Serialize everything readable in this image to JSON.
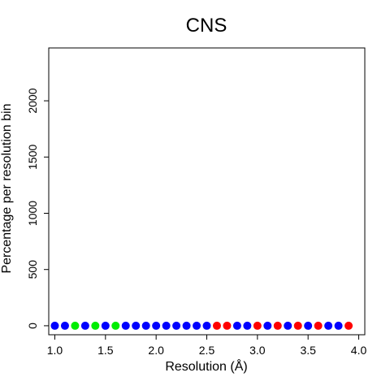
{
  "chart_data": {
    "type": "scatter",
    "title": "CNS",
    "xlabel": "Resolution (Å)",
    "ylabel": "Percentage per resolution bin",
    "xlim": [
      0.94,
      4.06
    ],
    "ylim": [
      -80,
      2470
    ],
    "xticks": [
      "1.0",
      "1.5",
      "2.0",
      "2.5",
      "3.0",
      "3.5",
      "4.0"
    ],
    "yticks": [
      "0",
      "500",
      "1000",
      "1500",
      "2000"
    ],
    "grid": false,
    "colors": {
      "blue": "#0000ff",
      "green": "#00ee00",
      "red": "#ff0000"
    },
    "points": [
      {
        "x": 1.0,
        "y": 0,
        "color": "blue"
      },
      {
        "x": 1.1,
        "y": 0,
        "color": "blue"
      },
      {
        "x": 1.2,
        "y": 0,
        "color": "green"
      },
      {
        "x": 1.3,
        "y": 0,
        "color": "blue"
      },
      {
        "x": 1.4,
        "y": 0,
        "color": "green"
      },
      {
        "x": 1.5,
        "y": 0,
        "color": "blue"
      },
      {
        "x": 1.6,
        "y": 0,
        "color": "green"
      },
      {
        "x": 1.7,
        "y": 0,
        "color": "blue"
      },
      {
        "x": 1.8,
        "y": 0,
        "color": "blue"
      },
      {
        "x": 1.9,
        "y": 0,
        "color": "blue"
      },
      {
        "x": 2.0,
        "y": 0,
        "color": "blue"
      },
      {
        "x": 2.1,
        "y": 0,
        "color": "blue"
      },
      {
        "x": 2.2,
        "y": 0,
        "color": "blue"
      },
      {
        "x": 2.3,
        "y": 0,
        "color": "blue"
      },
      {
        "x": 2.4,
        "y": 0,
        "color": "blue"
      },
      {
        "x": 2.5,
        "y": 0,
        "color": "blue"
      },
      {
        "x": 2.6,
        "y": 0,
        "color": "red"
      },
      {
        "x": 2.7,
        "y": 0,
        "color": "red"
      },
      {
        "x": 2.8,
        "y": 0,
        "color": "blue"
      },
      {
        "x": 2.9,
        "y": 0,
        "color": "blue"
      },
      {
        "x": 3.0,
        "y": 0,
        "color": "red"
      },
      {
        "x": 3.1,
        "y": 0,
        "color": "blue"
      },
      {
        "x": 3.2,
        "y": 0,
        "color": "red"
      },
      {
        "x": 3.3,
        "y": 0,
        "color": "blue"
      },
      {
        "x": 3.4,
        "y": 0,
        "color": "red"
      },
      {
        "x": 3.5,
        "y": 0,
        "color": "blue"
      },
      {
        "x": 3.6,
        "y": 0,
        "color": "red"
      },
      {
        "x": 3.7,
        "y": 0,
        "color": "blue"
      },
      {
        "x": 3.8,
        "y": 0,
        "color": "blue"
      },
      {
        "x": 3.9,
        "y": 0,
        "color": "red"
      }
    ]
  }
}
